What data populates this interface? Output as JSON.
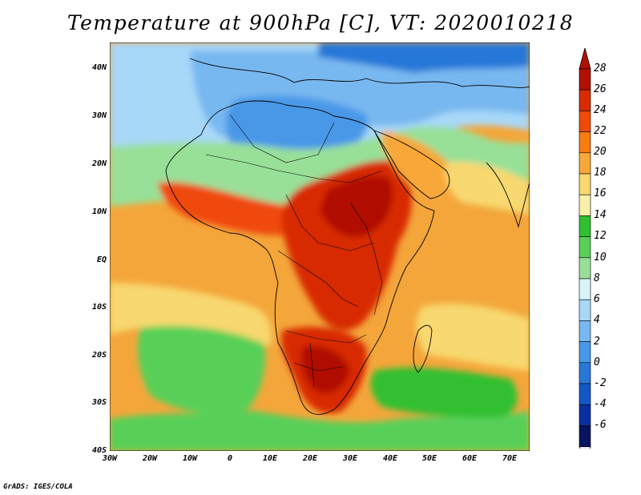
{
  "title": "Temperature at 900hPa [C], VT: 2020010218",
  "credit": "GrADS: IGES/COLA",
  "lat_labels": [
    "40N",
    "30N",
    "20N",
    "10N",
    "EQ",
    "10S",
    "20S",
    "30S",
    "40S"
  ],
  "lon_labels": [
    "30W",
    "20W",
    "10W",
    "0",
    "10E",
    "20E",
    "30E",
    "40E",
    "50E",
    "60E",
    "70E"
  ],
  "colorbar": {
    "labels": [
      "28",
      "26",
      "24",
      "22",
      "20",
      "18",
      "16",
      "14",
      "12",
      "10",
      "8",
      "6",
      "4",
      "2",
      "0",
      "-2",
      "-4",
      "-6"
    ],
    "colors": [
      "#b01000",
      "#d82c00",
      "#f04a08",
      "#f87c10",
      "#f8a838",
      "#f8d870",
      "#f8f0a8",
      "#30c030",
      "#58d058",
      "#98e098",
      "#d8f4f8",
      "#a8d8f8",
      "#78b8f0",
      "#4898e8",
      "#2878d8",
      "#1458c8",
      "#0830a0",
      "#081460"
    ]
  }
}
